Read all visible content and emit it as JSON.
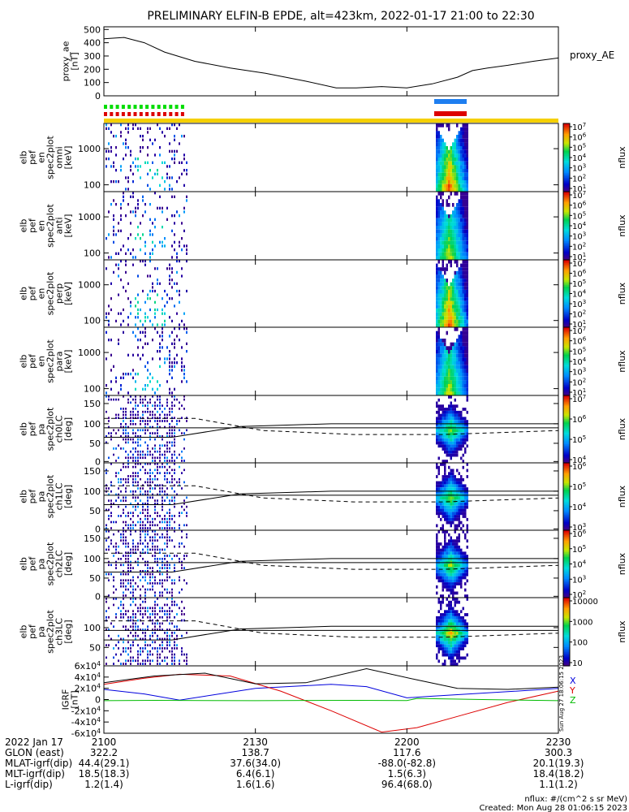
{
  "title": "PRELIMINARY ELFIN-B EPDE, alt=423km, 2022-01-17 21:00 to 22:30",
  "colors": {
    "green": "#00dd00",
    "red": "#dd0000",
    "blue": "#1e7ef0",
    "gold": "#f5d000",
    "bx": "#0000dd",
    "by": "#dd0000",
    "bz": "#00bb00",
    "bt": "#000000"
  },
  "panels": [
    {
      "ylabel_lines": [
        "proxy_ae",
        "[nT]"
      ],
      "yticks": [
        "500",
        "400",
        "300",
        "200",
        "100",
        "0"
      ],
      "right_label": "proxy_AE"
    },
    {
      "ylabel_lines": [
        "elb",
        "pef",
        "en",
        "spec2plot",
        "omni",
        "[keV]"
      ],
      "yticks": [
        "1000",
        "100"
      ],
      "cbar_ticks": [
        "10^7",
        "10^6",
        "10^5",
        "10^4",
        "10^3",
        "10^2",
        "10^1"
      ],
      "cbar_label": "nflux"
    },
    {
      "ylabel_lines": [
        "elb",
        "pef",
        "en",
        "spec2plot",
        "anti",
        "[keV]"
      ],
      "yticks": [
        "1000",
        "100"
      ],
      "cbar_ticks": [
        "10^7",
        "10^6",
        "10^5",
        "10^4",
        "10^3",
        "10^2",
        "10^1"
      ],
      "cbar_label": "nflux"
    },
    {
      "ylabel_lines": [
        "elb",
        "pef",
        "en",
        "spec2plot",
        "perp",
        "[keV]"
      ],
      "yticks": [
        "1000",
        "100"
      ],
      "cbar_ticks": [
        "10^7",
        "10^6",
        "10^5",
        "10^4",
        "10^3",
        "10^2",
        "10^1"
      ],
      "cbar_label": "nflux"
    },
    {
      "ylabel_lines": [
        "elb",
        "pef",
        "en",
        "spec2plot",
        "para",
        "[keV]"
      ],
      "yticks": [
        "1000",
        "100"
      ],
      "cbar_ticks": [
        "10^7",
        "10^6",
        "10^5",
        "10^4",
        "10^3",
        "10^2",
        "10^1"
      ],
      "cbar_label": "nflux"
    },
    {
      "ylabel_lines": [
        "elb",
        "pef",
        "pa",
        "spec2plot",
        "ch0LC",
        "[deg]"
      ],
      "yticks": [
        "150",
        "100",
        "50",
        "0"
      ],
      "cbar_ticks": [
        "10^7",
        "10^6",
        "10^5",
        "10^4"
      ],
      "cbar_label": "nflux"
    },
    {
      "ylabel_lines": [
        "elb",
        "pef",
        "pa",
        "spec2plot",
        "ch1LC",
        "[deg]"
      ],
      "yticks": [
        "150",
        "100",
        "50",
        "0"
      ],
      "cbar_ticks": [
        "10^6",
        "10^5",
        "10^4",
        "10^3"
      ],
      "cbar_label": "nflux"
    },
    {
      "ylabel_lines": [
        "elb",
        "pef",
        "pa",
        "spec2plot",
        "ch2LC",
        "[deg]"
      ],
      "yticks": [
        "150",
        "100",
        "50",
        "0"
      ],
      "cbar_ticks": [
        "10^6",
        "10^5",
        "10^4",
        "10^3",
        "10^2"
      ],
      "cbar_label": "nflux"
    },
    {
      "ylabel_lines": [
        "elb",
        "pef",
        "pa",
        "spec2plot",
        "ch3LC",
        "[deg]"
      ],
      "yticks": [
        "100",
        "50"
      ],
      "cbar_ticks": [
        "10000",
        "1000",
        "100",
        "10"
      ],
      "cbar_label": "nflux"
    },
    {
      "ylabel_lines": [
        "IGRF",
        "[nT]"
      ],
      "yticks": [
        "6x10^4",
        "4x10^4",
        "2x10^4",
        "0",
        "-2x10^4",
        "-4x10^4",
        "-6x10^4"
      ],
      "legend": [
        "X",
        "Y",
        "Z"
      ],
      "side_note": "Sun Aug 27 18:06:15 2023"
    }
  ],
  "chart_data": [
    {
      "type": "line",
      "name": "proxy_ae",
      "ylim": [
        0,
        520
      ],
      "x": [
        0,
        4,
        8,
        12,
        18,
        25,
        32,
        40,
        46,
        50,
        55,
        60,
        65,
        70,
        73,
        76,
        80,
        85,
        90
      ],
      "values": [
        430,
        440,
        400,
        330,
        260,
        210,
        170,
        110,
        60,
        60,
        70,
        60,
        90,
        140,
        190,
        210,
        230,
        260,
        285
      ]
    },
    {
      "type": "line",
      "name": "IGRF X",
      "ylim": [
        -60000,
        60000
      ],
      "x": [
        0,
        8,
        15,
        30,
        45,
        52,
        60,
        65,
        80,
        90
      ],
      "values": [
        18000,
        10000,
        -1000,
        20000,
        27000,
        23000,
        3000,
        6000,
        14000,
        20000
      ]
    },
    {
      "type": "line",
      "name": "IGRF Y",
      "ylim": [
        -60000,
        60000
      ],
      "x": [
        0,
        8,
        15,
        25,
        35,
        45,
        55,
        62,
        70,
        80,
        90
      ],
      "values": [
        27000,
        38000,
        45000,
        42000,
        15000,
        -20000,
        -58000,
        -50000,
        -30000,
        -5000,
        15000
      ]
    },
    {
      "type": "line",
      "name": "IGRF Z",
      "ylim": [
        -60000,
        60000
      ],
      "x": [
        0,
        10,
        20,
        30,
        40,
        50,
        60,
        62,
        75,
        90
      ],
      "values": [
        -2000,
        -1500,
        -1800,
        -2000,
        -1600,
        -1500,
        -1800,
        2000,
        0,
        -2000
      ]
    },
    {
      "type": "line",
      "name": "IGRF T",
      "ylim": [
        -60000,
        60000
      ],
      "x": [
        0,
        10,
        20,
        30,
        40,
        52,
        62,
        70,
        80,
        90
      ],
      "values": [
        30000,
        42000,
        47000,
        28000,
        30000,
        55000,
        35000,
        20000,
        18000,
        22000
      ]
    }
  ],
  "x_axis": {
    "label_rows": [
      "2022 Jan 17",
      "GLON (east)",
      "MLAT-igrf(dip)",
      "MLT-igrf(dip)",
      "L-igrf(dip)"
    ],
    "ticks": [
      {
        "t": 0,
        "vals": [
          "2100",
          "322.2",
          "44.4(29.1)",
          "18.5(18.3)",
          "1.2(1.4)"
        ]
      },
      {
        "t": 30,
        "vals": [
          "2130",
          "138.7",
          "37.6(34.0)",
          "6.4(6.1)",
          "1.6(1.6)"
        ]
      },
      {
        "t": 60,
        "vals": [
          "2200",
          "117.6",
          "-88.0(-82.8)",
          "1.5(6.3)",
          "96.4(68.0)"
        ]
      },
      {
        "t": 90,
        "vals": [
          "2230",
          "300.3",
          "20.1(19.3)",
          "18.4(18.2)",
          "1.1(1.2)"
        ]
      }
    ]
  },
  "footer": {
    "units": "nflux: #/(cm^2 s sr MeV)",
    "created": "Created: Mon Aug 28 01:06:15 2023"
  }
}
